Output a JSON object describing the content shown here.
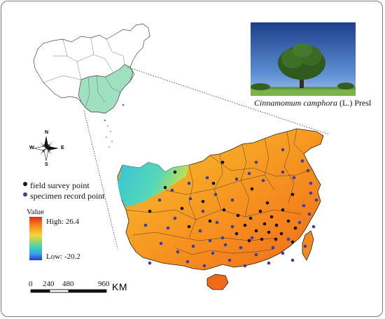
{
  "photo_caption": {
    "species_italic": "Cinnamomum camphora",
    "authority": "(L.) Presl"
  },
  "legend": {
    "field_survey": "field survey point",
    "specimen_record": "specimen record point",
    "field_color": "#111111",
    "specimen_color": "#3b3f9e"
  },
  "value_legend": {
    "title": "Value",
    "high": "High:  26.4",
    "low": "Low: -20.2",
    "colors": [
      "#d7301f",
      "#f46d1a",
      "#f9a21f",
      "#f4d83a",
      "#9bd66a",
      "#3fd3b4",
      "#38a3e8",
      "#2b3ac9"
    ]
  },
  "compass": {
    "n": "N",
    "s": "S",
    "e": "E",
    "w": "W"
  },
  "scale_bar": {
    "ticks": [
      "0",
      "240",
      "480",
      "960"
    ],
    "unit": "KM"
  },
  "inset": {
    "highlight_color": "#9fe0c0"
  },
  "map": {
    "field_points": [
      [
        318,
        232
      ],
      [
        250,
        246
      ],
      [
        305,
        262
      ],
      [
        360,
        270
      ],
      [
        418,
        278
      ],
      [
        290,
        288
      ],
      [
        382,
        290
      ],
      [
        260,
        298
      ],
      [
        320,
        300
      ],
      [
        404,
        300
      ],
      [
        340,
        308
      ],
      [
        372,
        302
      ],
      [
        388,
        310
      ],
      [
        358,
        312
      ],
      [
        412,
        316
      ],
      [
        300,
        316
      ],
      [
        378,
        320
      ],
      [
        395,
        322
      ],
      [
        350,
        322
      ],
      [
        422,
        326
      ],
      [
        366,
        330
      ],
      [
        384,
        332
      ],
      [
        402,
        334
      ],
      [
        338,
        334
      ],
      [
        374,
        342
      ],
      [
        394,
        342
      ],
      [
        356,
        344
      ],
      [
        418,
        346
      ],
      [
        270,
        324
      ],
      [
        214,
        302
      ],
      [
        236,
        268
      ]
    ],
    "specimen_points": [
      [
        404,
        214
      ],
      [
        432,
        230
      ],
      [
        440,
        244
      ],
      [
        420,
        254
      ],
      [
        444,
        262
      ],
      [
        356,
        248
      ],
      [
        296,
        254
      ],
      [
        338,
        256
      ],
      [
        376,
        258
      ],
      [
        270,
        262
      ],
      [
        246,
        272
      ],
      [
        444,
        276
      ],
      [
        308,
        278
      ],
      [
        452,
        286
      ],
      [
        228,
        286
      ],
      [
        434,
        294
      ],
      [
        272,
        284
      ],
      [
        332,
        286
      ],
      [
        290,
        302
      ],
      [
        442,
        306
      ],
      [
        250,
        312
      ],
      [
        310,
        318
      ],
      [
        428,
        318
      ],
      [
        448,
        324
      ],
      [
        208,
        322
      ],
      [
        240,
        326
      ],
      [
        286,
        330
      ],
      [
        332,
        324
      ],
      [
        412,
        342
      ],
      [
        360,
        340
      ],
      [
        300,
        344
      ],
      [
        322,
        350
      ],
      [
        276,
        352
      ],
      [
        436,
        352
      ],
      [
        344,
        354
      ],
      [
        390,
        354
      ],
      [
        254,
        360
      ],
      [
        304,
        362
      ],
      [
        366,
        364
      ],
      [
        404,
        362
      ],
      [
        268,
        374
      ],
      [
        328,
        372
      ],
      [
        292,
        380
      ],
      [
        350,
        380
      ],
      [
        214,
        376
      ],
      [
        418,
        372
      ],
      [
        230,
        348
      ],
      [
        404,
        246
      ],
      [
        366,
        232
      ],
      [
        318,
        340
      ],
      [
        384,
        376
      ]
    ]
  }
}
